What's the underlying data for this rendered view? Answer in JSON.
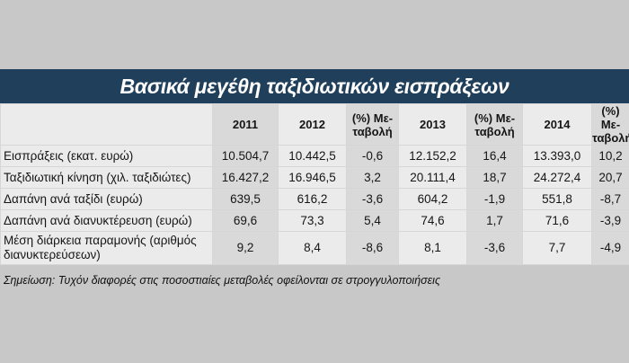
{
  "title": "Βασικά μεγέθη ταξιδιωτικών εισπράξεων",
  "table": {
    "headers": [
      "",
      "2011",
      "2012",
      "(%) Με-\nταβολή",
      "2013",
      "(%) Με-\nταβολή",
      "2014",
      "(%) Με-\nταβολή"
    ],
    "rows": [
      {
        "label": "Εισπράξεις (εκατ. ευρώ)",
        "values": [
          "10.504,7",
          "10.442,5",
          "-0,6",
          "12.152,2",
          "16,4",
          "13.393,0",
          "10,2"
        ]
      },
      {
        "label": "Ταξιδιωτική κίνηση (χιλ. ταξιδιώτες)",
        "values": [
          "16.427,2",
          "16.946,5",
          "3,2",
          "20.111,4",
          "18,7",
          "24.272,4",
          "20,7"
        ]
      },
      {
        "label": "Δαπάνη ανά ταξίδι (ευρώ)",
        "values": [
          "639,5",
          "616,2",
          "-3,6",
          "604,2",
          "-1,9",
          "551,8",
          "-8,7"
        ]
      },
      {
        "label": "Δαπάνη ανά διανυκτέρευση (ευρώ)",
        "values": [
          "69,6",
          "73,3",
          "5,4",
          "74,6",
          "1,7",
          "71,6",
          "-3,9"
        ]
      },
      {
        "label": "Μέση διάρκεια παραμονής (αριθμός\nδιανυκτερεύσεων)",
        "values": [
          "9,2",
          "8,4",
          "-8,6",
          "8,1",
          "-3,6",
          "7,7",
          "-4,9"
        ]
      }
    ]
  },
  "note": "Σημείωση: Τυχόν διαφορές στις ποσοστιαίες μεταβολές οφείλονται σε στρογγυλοποιήσεις",
  "colors": {
    "title_bar": "#1f3f5a",
    "background": "#c8c8c8",
    "cell_light": "#ebebeb",
    "cell_dark": "#d9d9d9"
  }
}
